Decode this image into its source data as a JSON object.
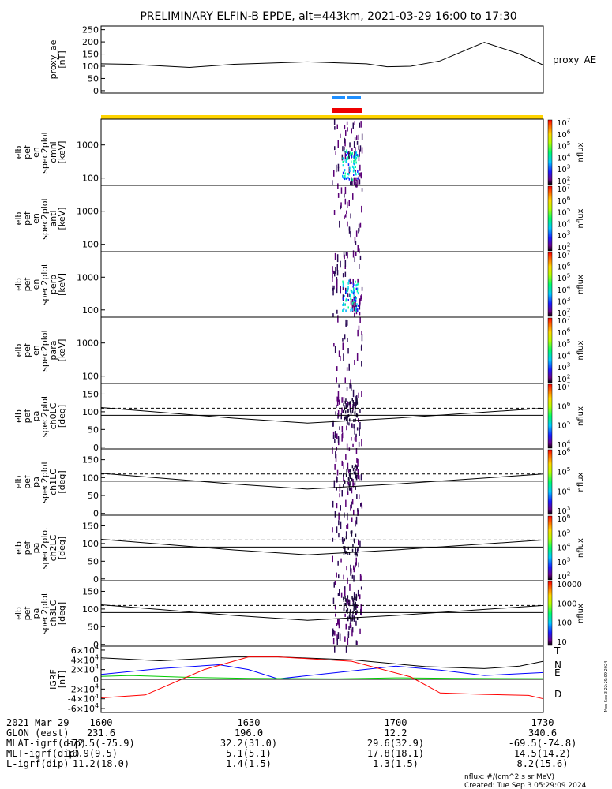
{
  "title": "PRELIMINARY ELFIN-B EPDE, alt=443km, 2021-03-29 16:00 to 17:30",
  "chart_data": [
    {
      "type": "line",
      "name": "proxy_ae",
      "ylabel_lines": [
        "proxy_ae",
        "[nT]"
      ],
      "right_label": "proxy_AE",
      "yticks": [
        0,
        50,
        100,
        150,
        200,
        250
      ],
      "ylim": [
        -10,
        265
      ],
      "series": [
        {
          "color": "#000000",
          "x": [
            16.0,
            16.1,
            16.3,
            16.45,
            16.7,
            16.9,
            16.97,
            17.05,
            17.15,
            17.3,
            17.42,
            17.5
          ],
          "y": [
            110,
            108,
            95,
            108,
            118,
            110,
            98,
            100,
            122,
            198,
            150,
            105
          ]
        }
      ]
    },
    {
      "type": "heatmap",
      "name": "elb_pef_en_spec2plot_omni",
      "ylabel_lines": [
        "elb",
        "pef",
        "en",
        "spec2plot",
        "omni",
        "[keV]"
      ],
      "yticks": [
        100,
        1000
      ],
      "ylim": [
        60,
        6000
      ],
      "ylog": true,
      "zlabel": "nflux",
      "zticks": [
        "10^2",
        "10^3",
        "10^4",
        "10^5",
        "10^6",
        "10^7"
      ]
    },
    {
      "type": "heatmap",
      "name": "elb_pef_en_spec2plot_anti",
      "ylabel_lines": [
        "elb",
        "pef",
        "en",
        "spec2plot",
        "anti",
        "[keV]"
      ],
      "yticks": [
        100,
        1000
      ],
      "ylim": [
        60,
        6000
      ],
      "ylog": true,
      "zlabel": "nflux",
      "zticks": [
        "10^2",
        "10^3",
        "10^4",
        "10^5",
        "10^6",
        "10^7"
      ]
    },
    {
      "type": "heatmap",
      "name": "elb_pef_en_spec2plot_perp",
      "ylabel_lines": [
        "elb",
        "pef",
        "en",
        "spec2plot",
        "perp",
        "[keV]"
      ],
      "yticks": [
        100,
        1000
      ],
      "ylim": [
        60,
        6000
      ],
      "ylog": true,
      "zlabel": "nflux",
      "zticks": [
        "10^2",
        "10^3",
        "10^4",
        "10^5",
        "10^6",
        "10^7"
      ]
    },
    {
      "type": "heatmap",
      "name": "elb_pef_en_spec2plot_para",
      "ylabel_lines": [
        "elb",
        "pef",
        "en",
        "spec2plot",
        "para",
        "[keV]"
      ],
      "yticks": [
        100,
        1000
      ],
      "ylim": [
        60,
        6000
      ],
      "ylog": true,
      "zlabel": "nflux",
      "zticks": [
        "10^2",
        "10^3",
        "10^4",
        "10^5",
        "10^6",
        "10^7"
      ]
    },
    {
      "type": "heatmap",
      "name": "elb_pef_pa_spec2plot_ch0LC",
      "ylabel_lines": [
        "elb",
        "pef",
        "pa",
        "spec2plot",
        "ch0LC",
        "[deg]"
      ],
      "yticks": [
        0,
        50,
        100,
        150
      ],
      "ylim": [
        -5,
        180
      ],
      "zlabel": "nflux",
      "zticks": [
        "10^4",
        "10^5",
        "10^6",
        "10^7"
      ]
    },
    {
      "type": "heatmap",
      "name": "elb_pef_pa_spec2plot_ch1LC",
      "ylabel_lines": [
        "elb",
        "pef",
        "pa",
        "spec2plot",
        "ch1LC",
        "[deg]"
      ],
      "yticks": [
        0,
        50,
        100,
        150
      ],
      "ylim": [
        -5,
        180
      ],
      "zlabel": "nflux",
      "zticks": [
        "10^3",
        "10^4",
        "10^5",
        "10^6"
      ]
    },
    {
      "type": "heatmap",
      "name": "elb_pef_pa_spec2plot_ch2LC",
      "ylabel_lines": [
        "elb",
        "pef",
        "pa",
        "spec2plot",
        "ch2LC",
        "[deg]"
      ],
      "yticks": [
        0,
        50,
        100,
        150
      ],
      "ylim": [
        -5,
        180
      ],
      "zlabel": "nflux",
      "zticks": [
        "10^2",
        "10^3",
        "10^4",
        "10^5",
        "10^6"
      ]
    },
    {
      "type": "heatmap",
      "name": "elb_pef_pa_spec2plot_ch3LC",
      "ylabel_lines": [
        "elb",
        "pef",
        "pa",
        "spec2plot",
        "ch3LC",
        "[deg]"
      ],
      "yticks": [
        0,
        50,
        100,
        150
      ],
      "ylim": [
        -5,
        180
      ],
      "zlabel": "nflux",
      "zticks": [
        "10",
        "100",
        "1000",
        "10000"
      ]
    },
    {
      "type": "line",
      "name": "IGRF",
      "ylabel_lines": [
        "IGRF",
        "[nT]"
      ],
      "yticks": [
        "6×10^4",
        "4×10^4",
        "2×10^4",
        "0",
        "-2×10^4",
        "-4×10^4",
        "-6×10^4"
      ],
      "ylim": [
        -68000,
        68000
      ],
      "legend": [
        "T",
        "N",
        "E",
        "D"
      ],
      "series": [
        {
          "name": "T",
          "color": "#000000",
          "x": [
            16.0,
            16.2,
            16.45,
            16.6,
            16.85,
            17.1,
            17.3,
            17.42,
            17.5
          ],
          "y": [
            44000,
            38000,
            46000,
            46000,
            40000,
            26000,
            22000,
            27000,
            37000
          ]
        },
        {
          "name": "N",
          "color": "#0000ff",
          "x": [
            16.0,
            16.2,
            16.4,
            16.5,
            16.6,
            16.8,
            17.0,
            17.15,
            17.3,
            17.5
          ],
          "y": [
            10000,
            22000,
            30000,
            20000,
            1000,
            14000,
            27000,
            19000,
            8000,
            14000
          ]
        },
        {
          "name": "E",
          "color": "#00cc00",
          "x": [
            16.0,
            16.1,
            16.3,
            16.5,
            16.8,
            17.0,
            17.2,
            17.5
          ],
          "y": [
            6000,
            8000,
            4000,
            2000,
            1000,
            3000,
            2000,
            1500
          ]
        },
        {
          "name": "D",
          "color": "#ff0000",
          "x": [
            16.0,
            16.15,
            16.35,
            16.5,
            16.6,
            16.85,
            17.05,
            17.15,
            17.3,
            17.45,
            17.5
          ],
          "y": [
            -38000,
            -32000,
            20000,
            46000,
            46000,
            37000,
            5000,
            -28000,
            -31000,
            -33000,
            -40000
          ]
        }
      ]
    }
  ],
  "sidebar_note": "Mon Sep  3 22:29:09 2024",
  "orbit_table": {
    "rows": [
      [
        "2021 Mar 29",
        "1600",
        "1630",
        "1700",
        "1730"
      ],
      [
        "GLON (east)",
        "231.6",
        "196.0",
        "12.2",
        "340.6"
      ],
      [
        "MLAT-igrf(dip)",
        "-72.5(-75.9)",
        "32.2(31.0)",
        "29.6(32.9)",
        "-69.5(-74.8)"
      ],
      [
        "MLT-igrf(dip)",
        "10.9(9.5)",
        "5.1(5.1)",
        "17.8(18.1)",
        "14.5(14.2)"
      ],
      [
        "L-igrf(dip)",
        "11.2(18.0)",
        "1.4(1.5)",
        "1.3(1.5)",
        "8.2(15.6)"
      ]
    ]
  },
  "footer": {
    "units": "nflux: #/(cm^2 s sr MeV)",
    "created": "Created: Tue Sep  3 05:29:09 2024"
  }
}
